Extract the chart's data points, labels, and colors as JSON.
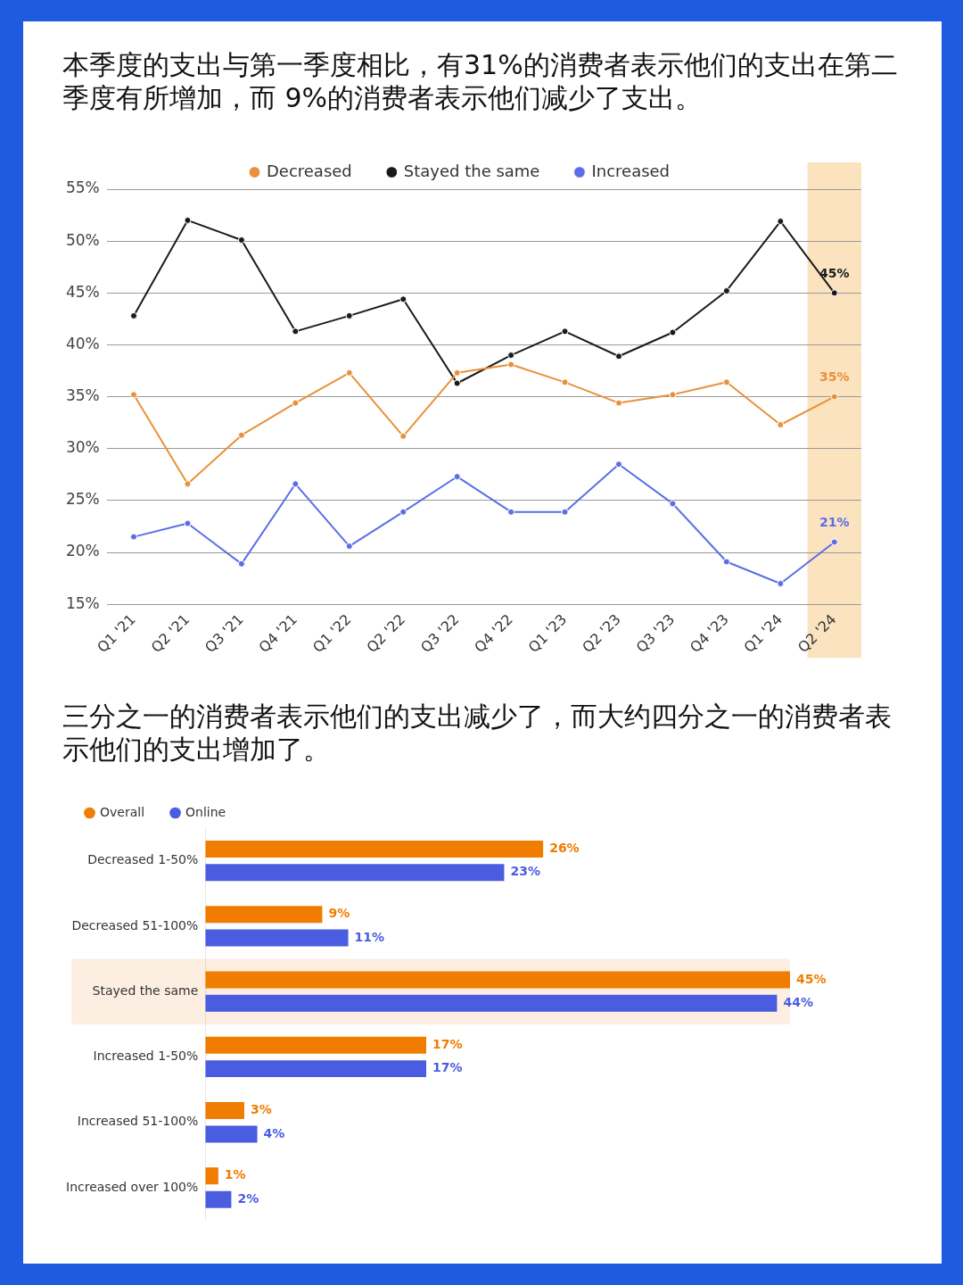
{
  "chart_data": [
    {
      "type": "line",
      "title": "本季度的支出与第一季度相比，有31%的消费者表示他们的支出在第二季度有所增加，而 9%的消费者表示他们减少了支出。",
      "categories": [
        "Q1 '21",
        "Q2 '21",
        "Q3 '21",
        "Q4 '21",
        "Q1 '22",
        "Q2 '22",
        "Q3 '22",
        "Q4 '22",
        "Q1 '23",
        "Q2 '23",
        "Q3 '23",
        "Q4 '23",
        "Q1 '24",
        "Q2 '24"
      ],
      "series": [
        {
          "name": "Decreased",
          "color": "#e8913a",
          "values": [
            35.2,
            26.6,
            31.3,
            34.4,
            37.3,
            31.2,
            37.3,
            38.1,
            36.4,
            34.4,
            35.2,
            36.4,
            32.3,
            35
          ],
          "value_labels": [
            null,
            null,
            null,
            null,
            null,
            null,
            null,
            null,
            null,
            null,
            null,
            null,
            null,
            "35%"
          ]
        },
        {
          "name": "Stayed the same",
          "color": "#1a1a1a",
          "values": [
            42.8,
            52,
            50.1,
            41.3,
            42.8,
            44.4,
            36.3,
            39,
            41.3,
            38.9,
            41.2,
            45.2,
            51.9,
            45
          ],
          "value_labels": [
            null,
            null,
            null,
            null,
            null,
            null,
            null,
            null,
            null,
            null,
            null,
            null,
            null,
            "45%"
          ]
        },
        {
          "name": "Increased",
          "color": "#5b6ee6",
          "values": [
            21.5,
            22.8,
            18.9,
            26.6,
            20.6,
            23.9,
            27.3,
            23.9,
            23.9,
            28.5,
            24.7,
            19.1,
            17,
            21
          ],
          "value_labels": [
            null,
            null,
            null,
            null,
            null,
            null,
            null,
            null,
            null,
            null,
            null,
            null,
            null,
            "21%"
          ]
        }
      ],
      "ylim": [
        15,
        55
      ],
      "yticks": [
        {
          "value": 15,
          "label": "15%"
        },
        {
          "value": 20,
          "label": "20%"
        },
        {
          "value": 25,
          "label": "25%"
        },
        {
          "value": 30,
          "label": "30%"
        },
        {
          "value": 35,
          "label": "35%"
        },
        {
          "value": 40,
          "label": "40%"
        },
        {
          "value": 45,
          "label": "45%"
        },
        {
          "value": 50,
          "label": "50%"
        },
        {
          "value": 55,
          "label": "55%"
        }
      ],
      "grid": "y",
      "legend": "top",
      "marker": "circle",
      "line_style": "solid",
      "bands": [
        {
          "axis": "x",
          "from": "Q2 '24",
          "to": "Q2 '24",
          "color": "#fbe3c0"
        }
      ]
    },
    {
      "type": "bar",
      "title": "三分之一的消费者表示他们的支出减少了，而大约四分之一的消费者表示他们的支出增加了。",
      "orientation": "horizontal",
      "categories": [
        "Decreased 1-50%",
        "Decreased 51-100%",
        "Stayed the same",
        "Increased 1-50%",
        "Increased 51-100%",
        "Increased over 100%"
      ],
      "series": [
        {
          "name": "Overall",
          "color": "#f07c00",
          "values": [
            26,
            9,
            45,
            17,
            3,
            1
          ],
          "value_labels": [
            "26%",
            "9%",
            "45%",
            "17%",
            "3%",
            "1%"
          ]
        },
        {
          "name": "Online",
          "color": "#4a5de0",
          "values": [
            23,
            11,
            44,
            17,
            4,
            2
          ],
          "value_labels": [
            "23%",
            "11%",
            "44%",
            "17%",
            "4%",
            "2%"
          ]
        }
      ],
      "tick_labels": "y",
      "legend": "top left",
      "bands": [
        {
          "axis": "y",
          "from": "Stayed the same",
          "to": "Stayed the same",
          "color": "#fdeee2"
        }
      ]
    }
  ]
}
